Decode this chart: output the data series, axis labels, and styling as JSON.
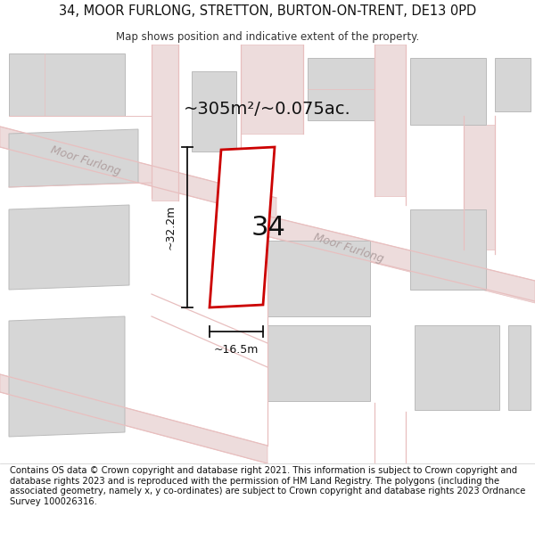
{
  "title": "34, MOOR FURLONG, STRETTON, BURTON-ON-TRENT, DE13 0PD",
  "subtitle": "Map shows position and indicative extent of the property.",
  "area_label": "~305m²/~0.075ac.",
  "number_label": "34",
  "width_label": "~16.5m",
  "height_label": "~32.2m",
  "road_label_1": "Moor Furlong",
  "road_label_2": "Moor Furlong",
  "footer": "Contains OS data © Crown copyright and database right 2021. This information is subject to Crown copyright and database rights 2023 and is reproduced with the permission of HM Land Registry. The polygons (including the associated geometry, namely x, y co-ordinates) are subject to Crown copyright and database rights 2023 Ordnance Survey 100026316.",
  "bg_color": "#ffffff",
  "map_bg": "#f7f0f0",
  "road_fill": "#eddcdc",
  "road_line": "#e8bfbf",
  "building_fill": "#d6d6d6",
  "building_line": "#bbbbbb",
  "plot_edge": "#cc0000",
  "plot_fill": "#ffffff",
  "dim_color": "#111111",
  "road_label_color": "#b0a0a0",
  "title_fontsize": 10.5,
  "subtitle_fontsize": 8.5,
  "footer_fontsize": 7.2,
  "area_fontsize": 14,
  "number_fontsize": 22,
  "dim_fontsize": 9,
  "road_label_fontsize": 9
}
